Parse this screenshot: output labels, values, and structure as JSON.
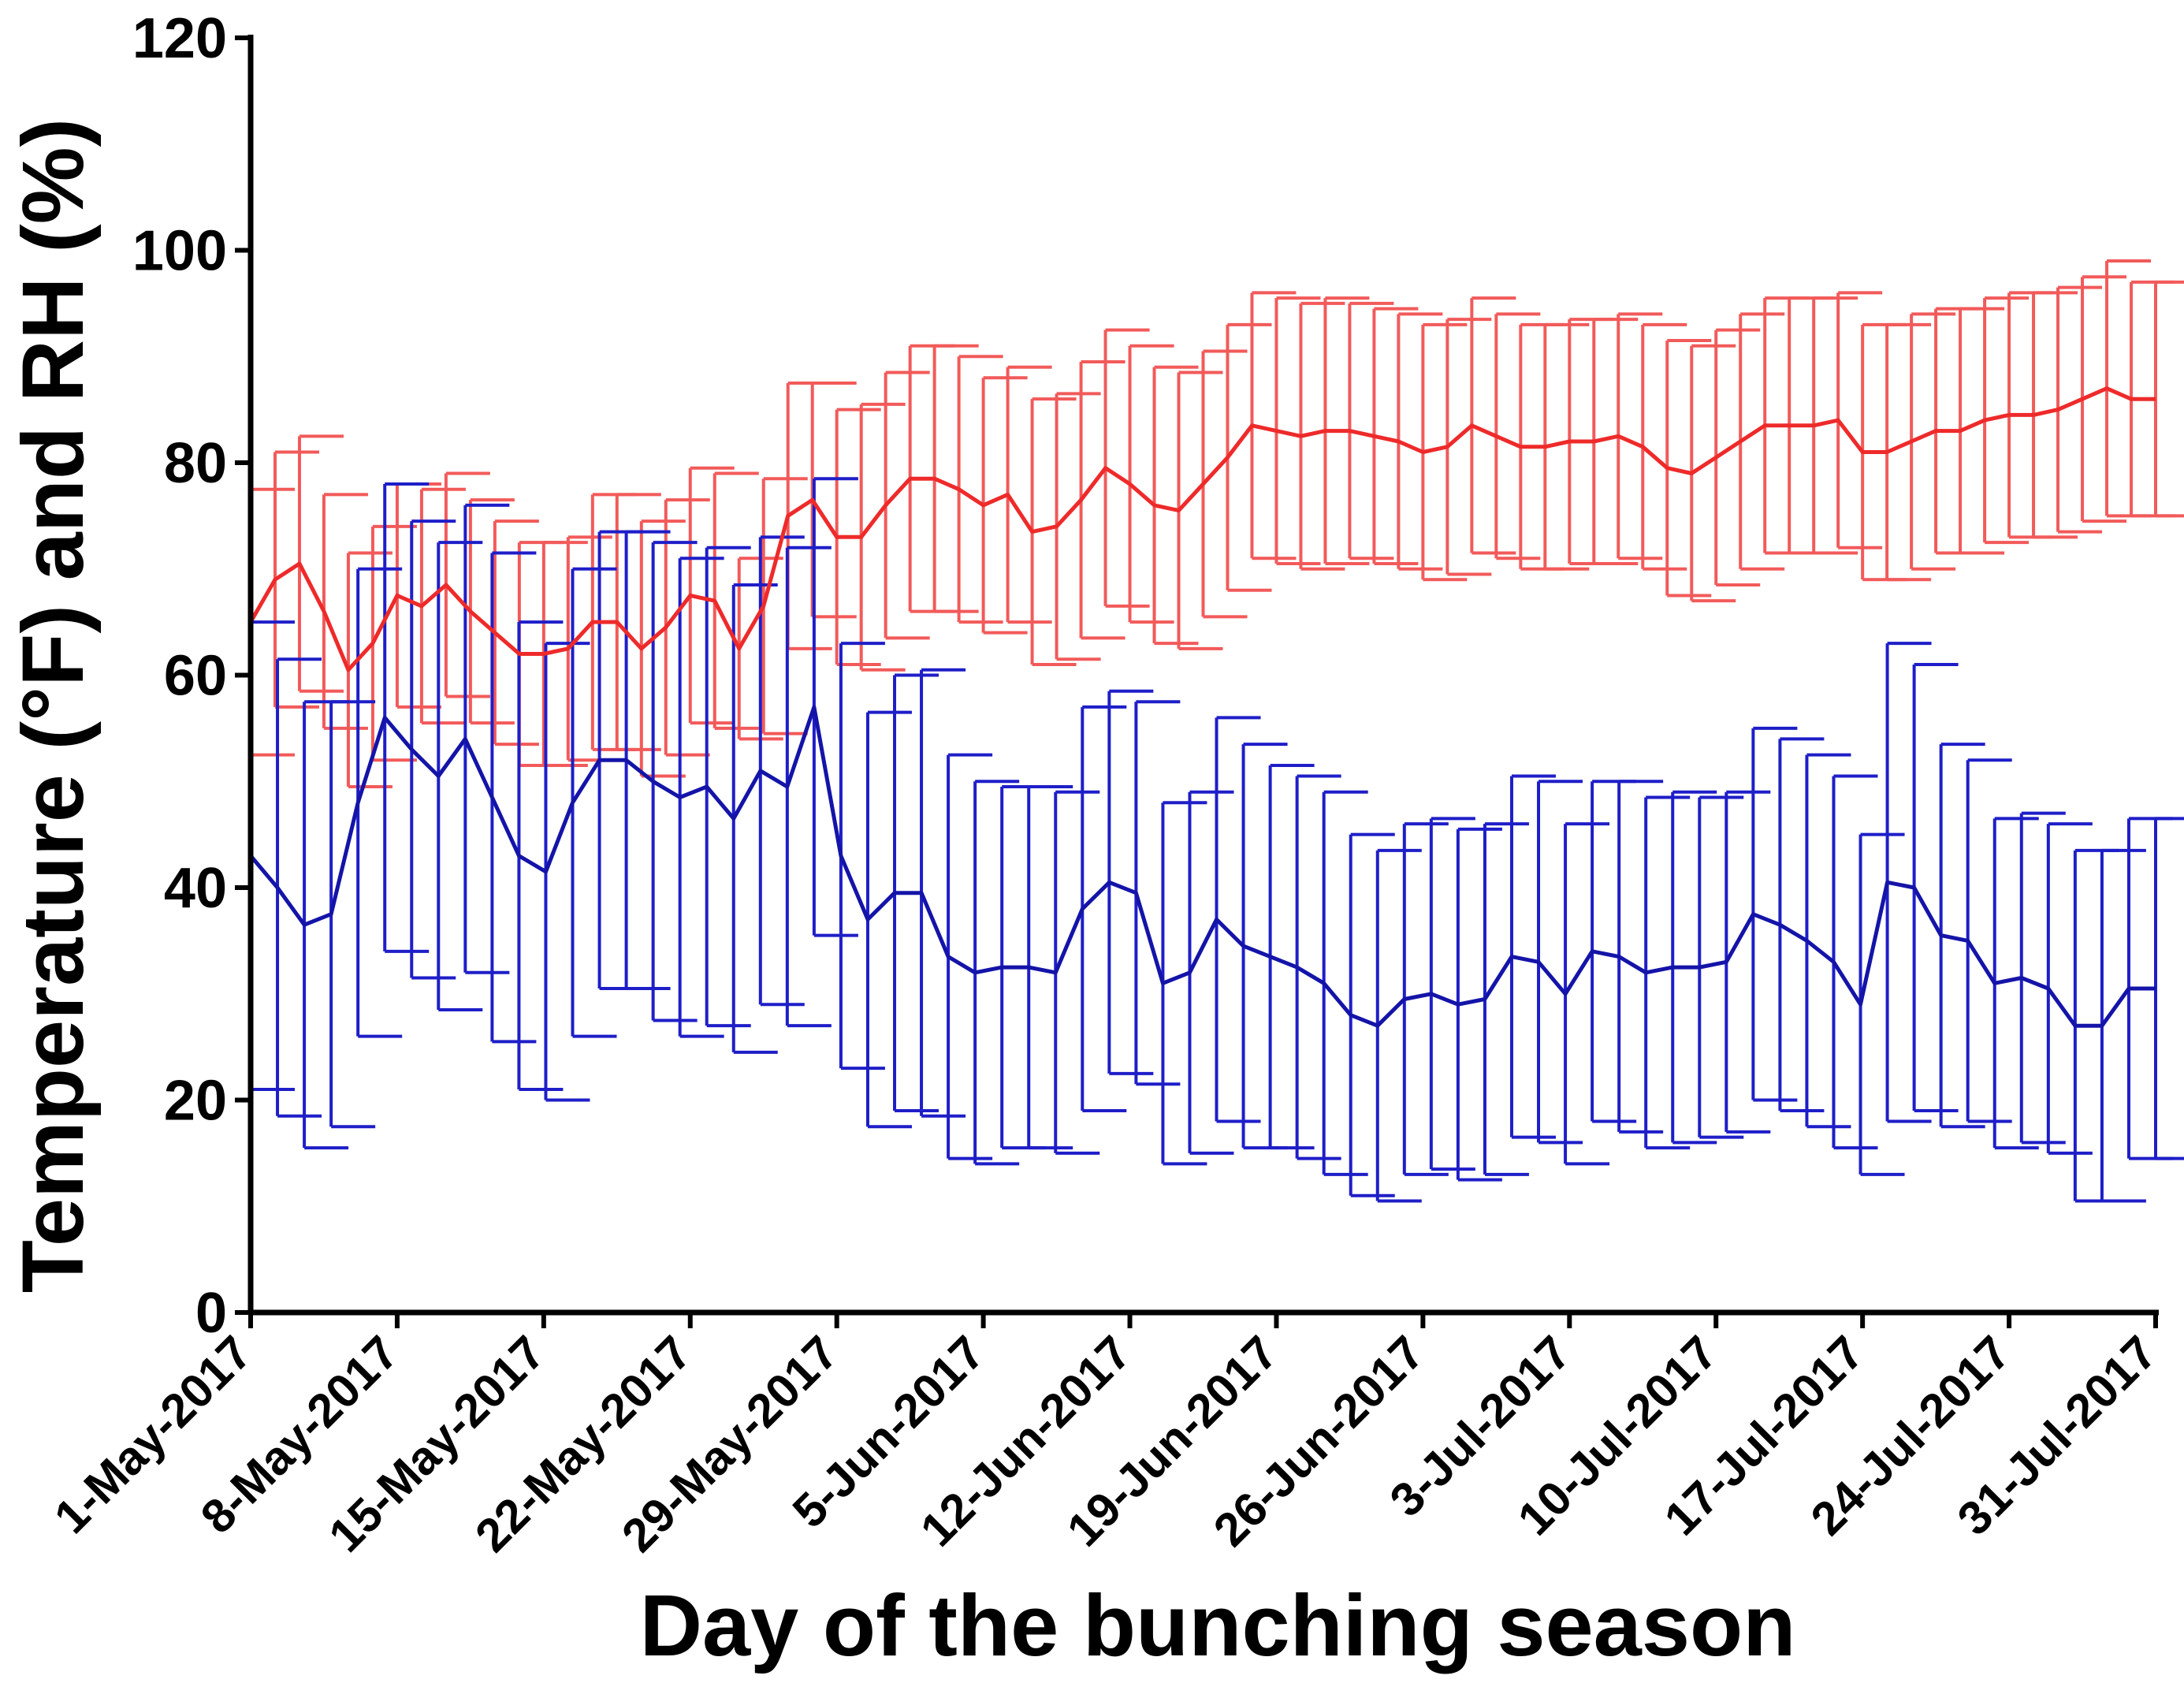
{
  "chart_data": {
    "type": "line",
    "title": "",
    "xlabel": "Day of the bunching season",
    "ylabel": "Temperature (°F) and RH (%)",
    "ylim": [
      0,
      120
    ],
    "yticks": [
      0,
      20,
      40,
      60,
      80,
      100,
      120
    ],
    "x_tick_labels": [
      "1-May-2017",
      "8-May-2017",
      "15-May-2017",
      "22-May-2017",
      "29-May-2017",
      "5-Jun-2017",
      "12-Jun-2017",
      "19-Jun-2017",
      "26-Jun-2017",
      "3-Jul-2017",
      "10-Jul-2017",
      "17-Jul-2017",
      "24-Jul-2017",
      "31-Jul-2017"
    ],
    "x_tick_days": [
      0,
      7,
      14,
      21,
      28,
      35,
      42,
      49,
      56,
      63,
      70,
      77,
      84,
      91
    ],
    "x_range_days": [
      0,
      91
    ],
    "grid": false,
    "legend": "none",
    "error_bars": "mean ± SD",
    "colors": {
      "series_red": "#ee2a2a",
      "series_red_bars": "#f25a5a",
      "series_blue": "#1414a8",
      "series_blue_bars": "#1e1ec8",
      "axis": "#000000"
    },
    "series": [
      {
        "name": "red series",
        "color_key": "series_red",
        "values": [
          65.0,
          69.0,
          70.5,
          66.0,
          60.5,
          63.0,
          67.5,
          66.5,
          68.5,
          66.0,
          64.0,
          62.0,
          62.0,
          62.5,
          65.0,
          65.0,
          62.5,
          64.5,
          67.5,
          67.0,
          62.5,
          66.5,
          75.0,
          76.5,
          73.0,
          73.0,
          76.0,
          78.5,
          78.5,
          77.5,
          76.0,
          77.0,
          73.5,
          74.0,
          76.5,
          79.5,
          78.0,
          76.0,
          75.5,
          78.0,
          80.5,
          83.5,
          83.0,
          82.5,
          83.0,
          83.0,
          82.5,
          82.0,
          81.0,
          81.5,
          83.5,
          82.5,
          81.5,
          81.5,
          82.0,
          82.0,
          82.5,
          81.5,
          79.5,
          79.0,
          80.5,
          82.0,
          83.5,
          83.5,
          83.5,
          84.0,
          81.0,
          81.0,
          82.0,
          83.0,
          83.0,
          84.0,
          84.5,
          84.5,
          85.0,
          86.0,
          87.0,
          86.0,
          86.0
        ],
        "sd": [
          12.5,
          12.0,
          12.0,
          11.0,
          11.0,
          11.0,
          10.5,
          11.0,
          10.5,
          10.5,
          10.5,
          10.5,
          10.5,
          10.5,
          12.0,
          12.0,
          12.0,
          12.0,
          12.0,
          12.0,
          8.5,
          12.0,
          12.5,
          11.0,
          12.0,
          12.5,
          12.5,
          12.5,
          12.5,
          12.5,
          12.0,
          12.0,
          12.5,
          12.5,
          13.0,
          13.0,
          13.0,
          13.0,
          13.0,
          12.5,
          12.5,
          12.5,
          12.5,
          12.5,
          12.5,
          12.0,
          12.0,
          12.0,
          12.0,
          12.0,
          12.0,
          11.5,
          11.5,
          11.5,
          11.5,
          11.5,
          11.5,
          11.5,
          12.0,
          12.0,
          12.0,
          12.0,
          12.0,
          12.0,
          12.0,
          12.0,
          12.0,
          12.0,
          12.0,
          11.5,
          11.5,
          11.5,
          11.5,
          11.5,
          11.5,
          11.5,
          12.0,
          11.0,
          11.0
        ]
      },
      {
        "name": "blue series",
        "color_key": "series_blue",
        "values": [
          43.0,
          40.0,
          36.5,
          37.5,
          48.0,
          56.0,
          53.0,
          50.5,
          54.0,
          48.5,
          43.0,
          41.5,
          48.0,
          52.0,
          52.0,
          50.0,
          48.5,
          49.5,
          46.5,
          51.0,
          49.5,
          57.0,
          43.0,
          37.0,
          39.5,
          39.5,
          33.5,
          32.0,
          32.5,
          32.5,
          32.0,
          38.0,
          40.5,
          39.5,
          31.0,
          32.0,
          37.0,
          34.5,
          33.5,
          32.5,
          31.0,
          28.0,
          27.0,
          29.5,
          30.0,
          29.0,
          29.5,
          33.5,
          33.0,
          30.0,
          34.0,
          33.5,
          32.0,
          32.5,
          32.5,
          33.0,
          37.5,
          36.5,
          35.0,
          33.0,
          29.0,
          40.5,
          40.0,
          35.5,
          35.0,
          31.0,
          31.5,
          30.5,
          27.0,
          27.0,
          30.5,
          30.5
        ],
        "sd": [
          22.0,
          21.5,
          21.0,
          20.0,
          22.0,
          22.0,
          21.5,
          22.0,
          22.0,
          23.0,
          22.0,
          21.5,
          22.0,
          21.5,
          21.5,
          22.5,
          22.5,
          22.5,
          22.0,
          22.0,
          22.5,
          21.5,
          20.0,
          19.5,
          20.5,
          21.0,
          19.0,
          18.0,
          17.0,
          17.0,
          17.0,
          19.0,
          18.0,
          18.0,
          17.0,
          17.0,
          19.0,
          19.0,
          18.0,
          18.0,
          18.0,
          17.0,
          16.5,
          16.5,
          16.5,
          16.5,
          16.5,
          17.0,
          17.0,
          16.0,
          16.0,
          16.5,
          16.5,
          16.5,
          16.0,
          16.0,
          17.5,
          17.5,
          17.5,
          17.5,
          16.0,
          22.5,
          21.0,
          18.0,
          17.0,
          15.5,
          15.5,
          15.5,
          16.5,
          16.5,
          16.0,
          16.0
        ]
      }
    ]
  }
}
